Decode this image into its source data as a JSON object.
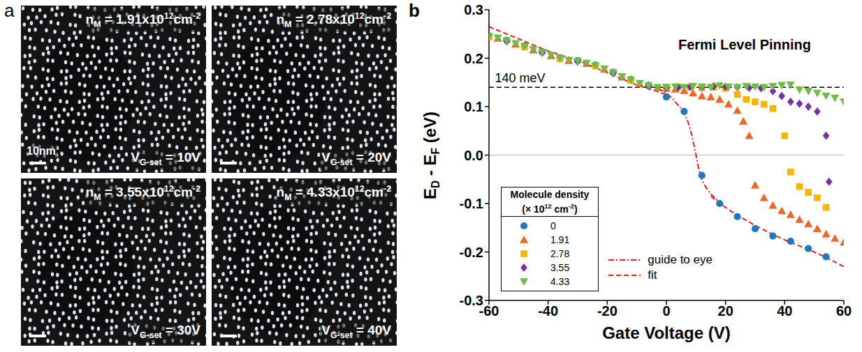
{
  "panel_a": {
    "letter": "a",
    "scale_bar_label": "10nm",
    "tiles": [
      {
        "density_label": [
          {
            "normal": "n"
          },
          {
            "sub": "M"
          },
          {
            "normal": " = 1.91x10"
          },
          {
            "sup": "12"
          },
          {
            "normal": "cm"
          },
          {
            "sup": "-2"
          }
        ],
        "gate_label": [
          {
            "normal": "V"
          },
          {
            "sub": "G-set"
          },
          {
            "normal": " = 10V"
          }
        ]
      },
      {
        "density_label": [
          {
            "normal": "n"
          },
          {
            "sub": "M"
          },
          {
            "normal": " = 2.78x10"
          },
          {
            "sup": "12"
          },
          {
            "normal": "cm"
          },
          {
            "sup": "-2"
          }
        ],
        "gate_label": [
          {
            "normal": "V"
          },
          {
            "sub": "G-set"
          },
          {
            "normal": " = 20V"
          }
        ]
      },
      {
        "density_label": [
          {
            "normal": "n"
          },
          {
            "sub": "M"
          },
          {
            "normal": " = 3.55x10"
          },
          {
            "sup": "12"
          },
          {
            "normal": "cm"
          },
          {
            "sup": "-2"
          }
        ],
        "gate_label": [
          {
            "normal": "V"
          },
          {
            "sub": "G-set"
          },
          {
            "normal": " = 30V"
          }
        ]
      },
      {
        "density_label": [
          {
            "normal": "n"
          },
          {
            "sub": "M"
          },
          {
            "normal": " = 4.33x10"
          },
          {
            "sup": "12"
          },
          {
            "normal": "cm"
          },
          {
            "sup": "-2"
          }
        ],
        "gate_label": [
          {
            "normal": "V"
          },
          {
            "sub": "G-set"
          },
          {
            "normal": " = 40V"
          }
        ]
      }
    ]
  },
  "chart_data": {
    "type": "scatter",
    "panel_label": "b",
    "xlabel": "Gate Voltage (V)",
    "ylabel": [
      {
        "normal": "E"
      },
      {
        "sub": "D"
      },
      {
        "normal": " - E"
      },
      {
        "sub": "F"
      },
      {
        "normal": " (eV)"
      }
    ],
    "annotations": [
      "Fermi Level Pinning"
    ],
    "reference_lines": [
      {
        "value": 0.14,
        "label": "140 meV",
        "line_style": "dashed",
        "color": "#000000"
      },
      {
        "value": 0,
        "line_style": "solid",
        "color": "#c8c8c8"
      }
    ],
    "xlim": [
      -60,
      60
    ],
    "xticks": [
      -60,
      -40,
      -20,
      0,
      20,
      40,
      60
    ],
    "ylim": [
      -0.3,
      0.3
    ],
    "yticks": [
      -0.3,
      -0.2,
      -0.1,
      {
        "value": 0,
        "label": "0.0"
      },
      0.1,
      0.2,
      0.3
    ],
    "grid": false,
    "legend": "lower left",
    "legend_title": {
      "line1": "Molecule density",
      "line2": [
        {
          "normal": "(× 10"
        },
        {
          "sup": "12"
        },
        {
          "normal": " cm"
        },
        {
          "sup": "-2"
        },
        {
          "normal": ")"
        }
      ]
    },
    "series": [
      {
        "name": "0",
        "type": "scatter",
        "marker": "circle",
        "color": "#1f78c1",
        "x": [
          -60,
          -54,
          -48,
          -42,
          -36,
          -30,
          -24,
          -18,
          -12,
          -6,
          0,
          6,
          12,
          18,
          24,
          30,
          36,
          42,
          48,
          54
        ],
        "values": [
          0.246,
          0.237,
          0.225,
          0.213,
          0.201,
          0.195,
          0.186,
          0.171,
          0.156,
          0.144,
          0.12,
          0.09,
          -0.042,
          -0.1,
          -0.127,
          -0.152,
          -0.167,
          -0.178,
          -0.193,
          -0.21
        ]
      },
      {
        "name": "1.91",
        "type": "scatter",
        "marker": "triangle",
        "color": "#f26522",
        "x": [
          -57,
          -51,
          -45,
          -39,
          -33,
          -27,
          -21,
          -15,
          -9,
          -3,
          0,
          3,
          6,
          9,
          12,
          15,
          18,
          21,
          24,
          26,
          28,
          30,
          33,
          36,
          39,
          42,
          45,
          48,
          51,
          54,
          57,
          60
        ],
        "values": [
          0.241,
          0.229,
          0.217,
          0.205,
          0.195,
          0.189,
          0.177,
          0.161,
          0.147,
          0.139,
          0.138,
          0.136,
          0.133,
          0.128,
          0.122,
          0.12,
          0.115,
          0.105,
          0.092,
          0.07,
          0.04,
          -0.062,
          -0.088,
          -0.104,
          -0.115,
          -0.123,
          -0.133,
          -0.142,
          -0.152,
          -0.163,
          -0.172,
          -0.18
        ]
      },
      {
        "name": "2.78",
        "type": "scatter",
        "marker": "square",
        "color": "#f7b500",
        "x": [
          -60,
          -48,
          -36,
          -24,
          -12,
          0,
          4,
          8,
          12,
          16,
          20,
          24,
          27,
          30,
          33,
          36,
          40,
          42,
          45,
          48,
          51,
          54
        ],
        "values": [
          0.244,
          0.223,
          0.199,
          0.184,
          0.154,
          0.14,
          0.141,
          0.14,
          0.139,
          0.14,
          0.138,
          0.125,
          0.115,
          0.11,
          0.105,
          0.096,
          0.04,
          -0.035,
          -0.065,
          -0.077,
          -0.088,
          -0.108
        ]
      },
      {
        "name": "3.55",
        "type": "scatter",
        "marker": "diamond",
        "color": "#7b2fa0",
        "x": [
          -54,
          -42,
          -30,
          -18,
          -6,
          0,
          4,
          8,
          12,
          16,
          20,
          24,
          28,
          32,
          36,
          39,
          42,
          45,
          48,
          51,
          54,
          55
        ],
        "values": [
          0.235,
          0.211,
          0.193,
          0.169,
          0.142,
          0.139,
          0.14,
          0.141,
          0.14,
          0.142,
          0.141,
          0.14,
          0.139,
          0.138,
          0.132,
          0.122,
          0.11,
          0.106,
          0.1,
          0.09,
          0.04,
          -0.055
        ]
      },
      {
        "name": "4.33",
        "type": "scatter",
        "marker": "triangle-down",
        "color": "#6dbe45",
        "x": [
          -60,
          -57,
          -54,
          -51,
          -48,
          -45,
          -42,
          -39,
          -36,
          -33,
          -30,
          -27,
          -24,
          -21,
          -18,
          -15,
          -12,
          -9,
          -6,
          -3,
          0,
          3,
          6,
          9,
          12,
          15,
          18,
          21,
          24,
          27,
          30,
          33,
          36,
          39,
          42,
          45,
          48,
          51,
          54,
          57,
          60
        ],
        "values": [
          0.245,
          0.242,
          0.236,
          0.23,
          0.224,
          0.218,
          0.212,
          0.206,
          0.2,
          0.196,
          0.194,
          0.19,
          0.185,
          0.178,
          0.17,
          0.162,
          0.155,
          0.148,
          0.143,
          0.14,
          0.14,
          0.141,
          0.14,
          0.142,
          0.141,
          0.14,
          0.143,
          0.141,
          0.14,
          0.142,
          0.141,
          0.14,
          0.142,
          0.144,
          0.145,
          0.135,
          0.132,
          0.128,
          0.122,
          0.118,
          0.11
        ]
      },
      {
        "name": "guide to eye",
        "type": "line",
        "marker": "none",
        "line_style": "dashdot",
        "color": "#e8211c",
        "x": [
          -3,
          0,
          3,
          6,
          8,
          9,
          10,
          11,
          12,
          14,
          17,
          20
        ],
        "values": [
          0.138,
          0.128,
          0.11,
          0.085,
          0.055,
          0.03,
          0,
          -0.03,
          -0.05,
          -0.072,
          -0.092,
          -0.108
        ]
      },
      {
        "name": "fit",
        "type": "line",
        "marker": "none",
        "line_style": "dashed",
        "color": "#e8211c",
        "x": [
          -60,
          -50,
          -40,
          -30,
          -20,
          -10,
          -5,
          0,
          7,
          15,
          20,
          30,
          40,
          50,
          60
        ],
        "values": [
          0.265,
          0.24,
          0.215,
          0.195,
          0.17,
          0.145,
          0.135,
          0.125,
          null,
          -0.085,
          -0.108,
          -0.145,
          -0.175,
          -0.2,
          -0.23
        ]
      }
    ]
  }
}
